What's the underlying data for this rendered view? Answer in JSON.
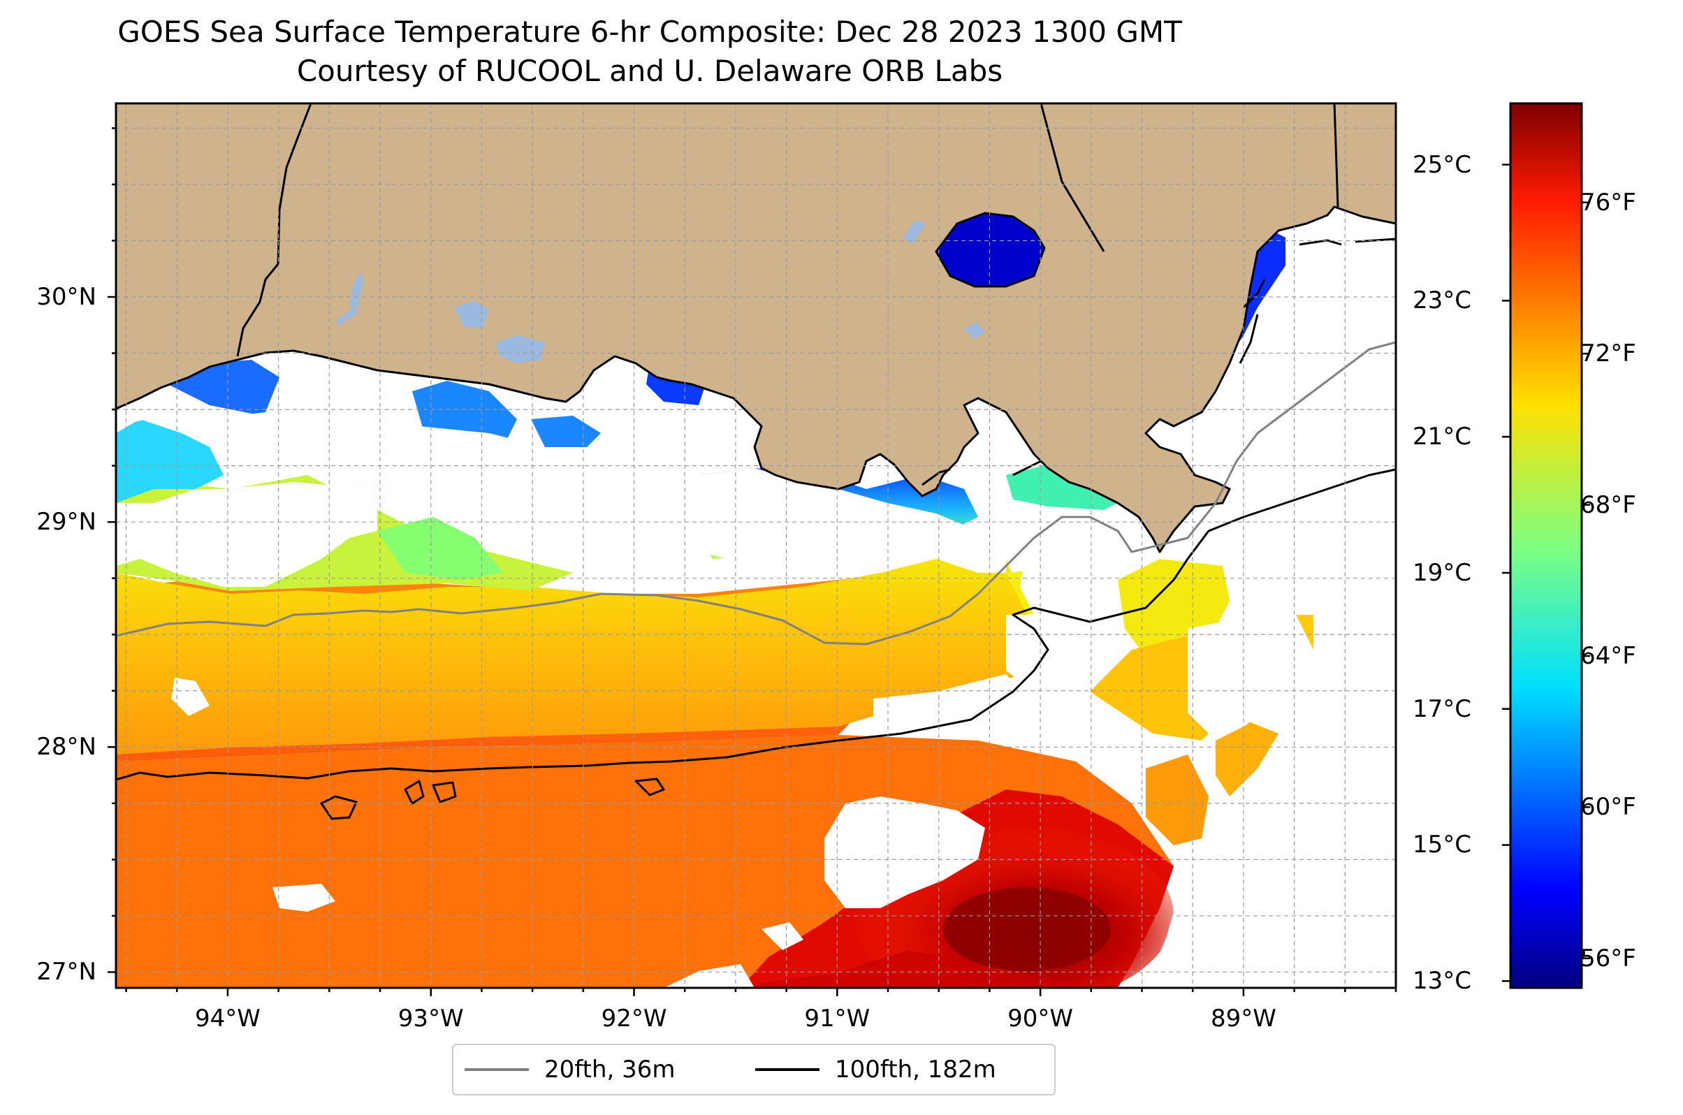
{
  "title": {
    "line1": "GOES Sea Surface Temperature 6-hr Composite: Dec 28 2023 1300 GMT",
    "line2": "Courtesy of RUCOOL and U. Delaware ORB Labs"
  },
  "map": {
    "extent": {
      "lon_min": -94.55,
      "lon_max": -88.25,
      "lat_min": 26.93,
      "lat_max": 30.86
    },
    "land_color": "#cfb38c",
    "no_data_color": "#ffffff",
    "gridlines": "dashed, 0.25 degree",
    "lat_ticks": [
      {
        "lat": 30,
        "label": "30°N"
      },
      {
        "lat": 29,
        "label": "29°N"
      },
      {
        "lat": 28,
        "label": "28°N"
      },
      {
        "lat": 27,
        "label": "27°N"
      }
    ],
    "lon_ticks": [
      {
        "lon": -94,
        "label": "94°W"
      },
      {
        "lon": -93,
        "label": "93°W"
      },
      {
        "lon": -92,
        "label": "92°W"
      },
      {
        "lon": -91,
        "label": "91°W"
      },
      {
        "lon": -90,
        "label": "90°W"
      },
      {
        "lon": -89,
        "label": "89°W"
      }
    ]
  },
  "colorbar": {
    "colormap": "jet",
    "range_c": [
      12.9,
      25.9
    ],
    "celsius_ticks": [
      {
        "value": 25,
        "label": "25°C"
      },
      {
        "value": 23,
        "label": "23°C"
      },
      {
        "value": 21,
        "label": "21°C"
      },
      {
        "value": 19,
        "label": "19°C"
      },
      {
        "value": 17,
        "label": "17°C"
      },
      {
        "value": 15,
        "label": "15°C"
      },
      {
        "value": 13,
        "label": "13°C"
      }
    ],
    "fahrenheit_ticks": [
      {
        "value": 76,
        "label": "76°F"
      },
      {
        "value": 72,
        "label": "72°F"
      },
      {
        "value": 68,
        "label": "68°F"
      },
      {
        "value": 64,
        "label": "64°F"
      },
      {
        "value": 60,
        "label": "60°F"
      },
      {
        "value": 56,
        "label": "56°F"
      }
    ]
  },
  "legend": {
    "items": [
      {
        "label": "20fth, 36m",
        "color": "#808080"
      },
      {
        "label": "100fth, 182m",
        "color": "#000000"
      }
    ]
  }
}
